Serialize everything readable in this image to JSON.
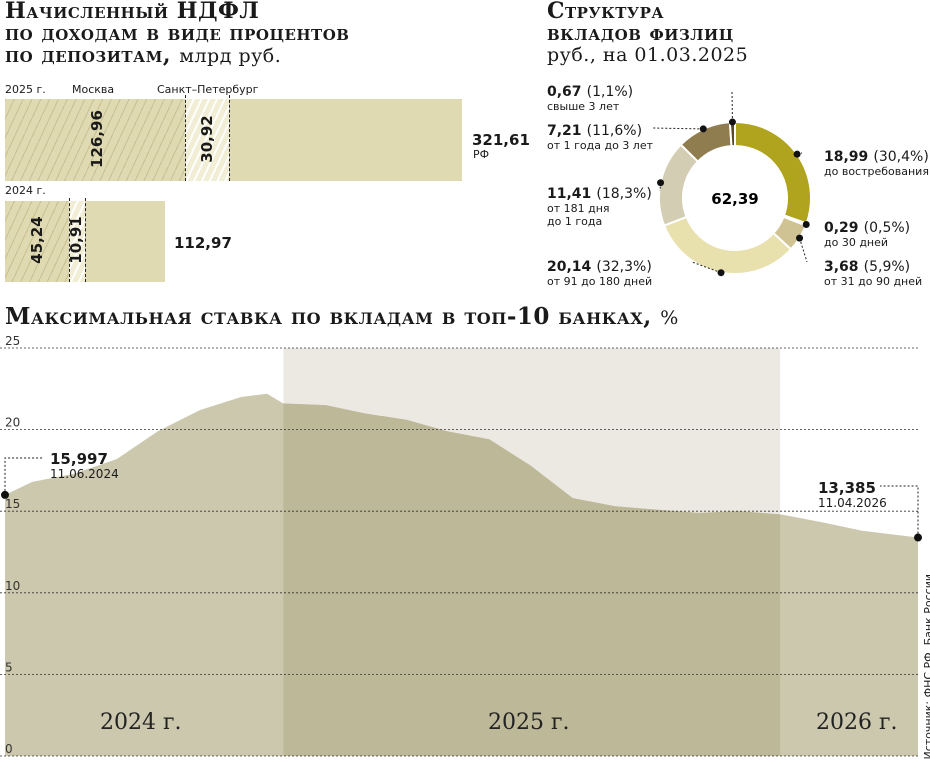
{
  "ndfl": {
    "title_lines": [
      "Начисленный НДФЛ",
      "по доходам в виде процентов",
      "по депозитам,"
    ],
    "unit": "млрд руб.",
    "labels": {
      "y2025": "2025 г.",
      "y2024": "2024 г.",
      "moscow": "Москва",
      "spb": "Санкт–Петербург",
      "rf": "РФ"
    }
  },
  "deposits": {
    "title_lines": [
      "Структура",
      "вкладов физлиц"
    ],
    "subtitle": "руб., на 01.03.2025",
    "center": "62,39"
  },
  "rate": {
    "title": "Максимальная ставка по вкладам в топ-10 банках,",
    "unit": "%",
    "start": {
      "value": "15,997",
      "date": "11.06.2024"
    },
    "end": {
      "value": "13,385",
      "date": "11.04.2026"
    },
    "years": [
      "2024 г.",
      "2025 г.",
      "2026 г."
    ],
    "source": "Источник: ФНС РФ, Банк России"
  },
  "chart_data": [
    {
      "type": "bar",
      "title": "Начисленный НДФЛ по доходам в виде процентов по депозитам, млрд руб.",
      "categories": [
        "2025 г.",
        "2024 г."
      ],
      "series": [
        {
          "name": "РФ",
          "values": [
            321.61,
            112.97
          ],
          "labels": [
            "321,61",
            "112,97"
          ]
        },
        {
          "name": "Москва",
          "values": [
            126.96,
            45.24
          ],
          "labels": [
            "126,96",
            "45,24"
          ]
        },
        {
          "name": "Санкт–Петербург",
          "values": [
            30.92,
            10.91
          ],
          "labels": [
            "30,92",
            "10,91"
          ]
        }
      ],
      "colors": {
        "bar": "#dfdab2",
        "stripe": "#b4aa78"
      }
    },
    {
      "type": "pie",
      "title": "Структура вкладов физлиц, руб., на 01.03.2025",
      "total": 62.39,
      "slices": [
        {
          "name": "до востребования",
          "value": 18.99,
          "value_label": "18,99",
          "pct_label": "(30,4%)",
          "color": "#b0a31e"
        },
        {
          "name": "до 30 дней",
          "value": 0.29,
          "value_label": "0,29",
          "pct_label": "(0,5%)",
          "color": "#ece4a6"
        },
        {
          "name": "от 31 до 90 дней",
          "value": 3.68,
          "value_label": "3,68",
          "pct_label": "(5,9%)",
          "color": "#cfc394"
        },
        {
          "name": "от 91 до 180 дней",
          "value": 20.14,
          "value_label": "20,14",
          "pct_label": "(32,3%)",
          "color": "#e8e0ad"
        },
        {
          "name": "от 181 дня до 1 года",
          "value": 11.41,
          "value_label": "11,41",
          "pct_label": "(18,3%)",
          "color": "#d3cdb4"
        },
        {
          "name": "от 1 года до 3 лет",
          "value": 7.21,
          "value_label": "7,21",
          "pct_label": "(11,6%)",
          "color": "#8f7c4f"
        },
        {
          "name": "свыше 3 лет",
          "value": 0.67,
          "value_label": "0,67",
          "pct_label": "(1,1%)",
          "color": "#5a4a2a"
        }
      ]
    },
    {
      "type": "area",
      "title": "Максимальная ставка по вкладам в топ-10 банках, %",
      "ylim": [
        0,
        25
      ],
      "yticks": [
        0,
        5,
        10,
        15,
        20,
        25
      ],
      "xlim": [
        "2024-06-11",
        "2026-04-11"
      ],
      "highlight_range": [
        "2025-01-01",
        "2025-12-31"
      ],
      "x": [
        "2024-06-11",
        "2024-07-01",
        "2024-08-01",
        "2024-09-01",
        "2024-10-01",
        "2024-11-01",
        "2024-12-01",
        "2024-12-20",
        "2025-01-01",
        "2025-02-01",
        "2025-03-01",
        "2025-04-01",
        "2025-05-01",
        "2025-06-01",
        "2025-07-01",
        "2025-08-01",
        "2025-09-01",
        "2025-10-01",
        "2025-11-01",
        "2025-12-01",
        "2026-01-01",
        "2026-02-01",
        "2026-03-01",
        "2026-04-11"
      ],
      "y": [
        15.997,
        16.8,
        17.3,
        18.2,
        19.9,
        21.2,
        22.0,
        22.2,
        21.6,
        21.5,
        21.0,
        20.6,
        19.9,
        19.4,
        17.8,
        15.8,
        15.3,
        15.1,
        14.9,
        15.0,
        14.8,
        14.3,
        13.8,
        13.385
      ],
      "colors": {
        "area": "#ccc8ad",
        "area_highlight": "#bdb897",
        "band": "#ebe9e2"
      }
    }
  ]
}
